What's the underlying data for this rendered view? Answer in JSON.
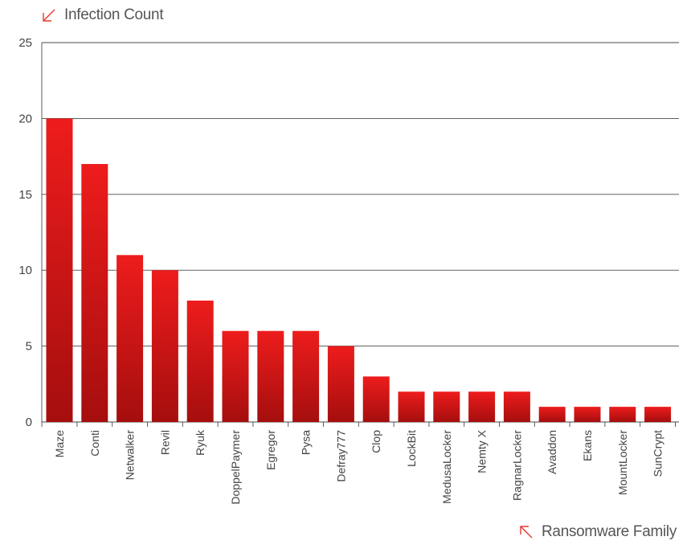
{
  "legend": {
    "y_label": "Infection Count",
    "x_label": "Ransomware Family",
    "y_icon": "arrow-down-left-icon",
    "x_icon": "arrow-up-left-icon",
    "icon_color": "#e8382f"
  },
  "chart_data": {
    "type": "bar",
    "categories": [
      "Maze",
      "Conti",
      "Netwalker",
      "Revil",
      "Ryuk",
      "DoppelPaymer",
      "Egregor",
      "Pysa",
      "Defray777",
      "Clop",
      "LockBit",
      "MedusaLocker",
      "Nemty X",
      "RagnarLocker",
      "Avaddon",
      "Ekans",
      "MountLocker",
      "SunCrypt"
    ],
    "values": [
      20,
      17,
      11,
      10,
      8,
      6,
      6,
      6,
      5,
      3,
      2,
      2,
      2,
      2,
      1,
      1,
      1,
      1
    ],
    "title": "",
    "xlabel": "Ransomware Family",
    "ylabel": "Infection Count",
    "ylim": [
      0,
      25
    ],
    "yticks": [
      0,
      5,
      10,
      15,
      20,
      25
    ],
    "grid": true,
    "bar_color_top": "#ee1c1c",
    "bar_color_bottom": "#a50e0e"
  }
}
